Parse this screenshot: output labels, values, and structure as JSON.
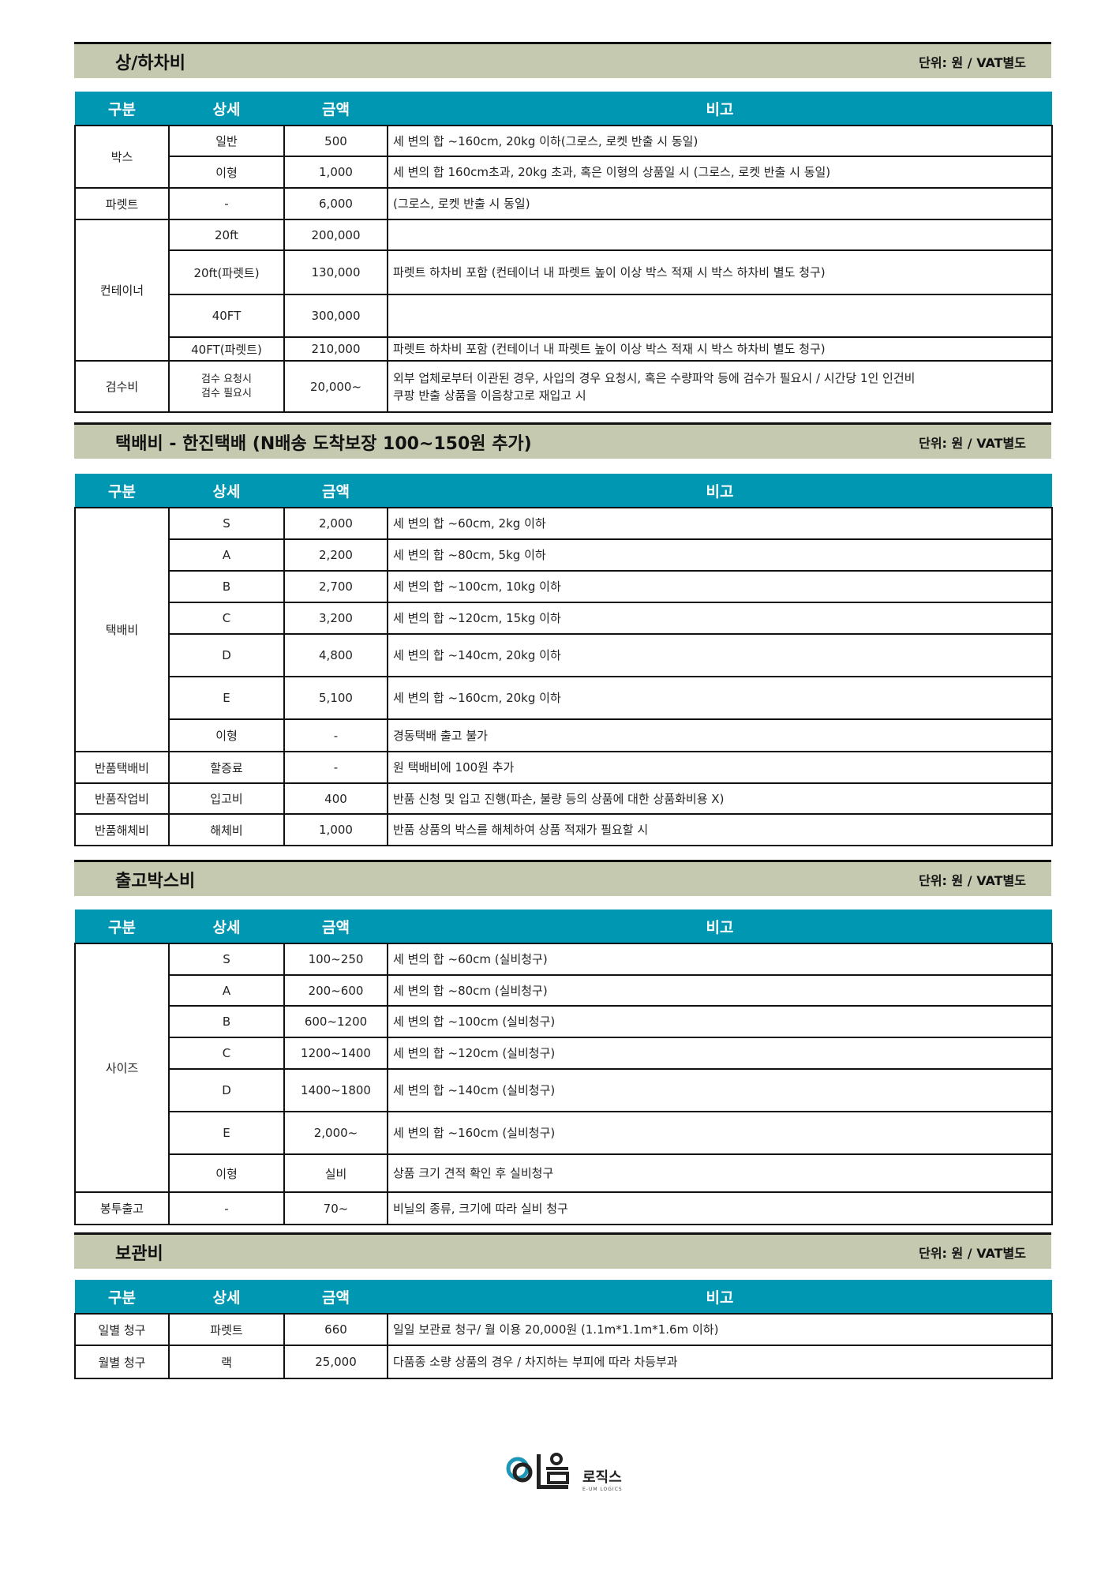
{
  "unit": "단위: 원 / VAT별도",
  "headers": [
    "구분",
    "상세",
    "금액",
    "비고"
  ],
  "s1": {
    "title": "상/하차비",
    "rows": [
      [
        "박스",
        "일반",
        "500",
        "세 변의 합 ~160cm, 20kg 이하(그로스, 로켓 반출 시 동일)"
      ],
      [
        "",
        "이형",
        "1,000",
        "세 변의 합 160cm초과, 20kg 초과, 혹은 이형의 상품일 시 (그로스, 로켓 반출 시 동일)"
      ],
      [
        "파렛트",
        "-",
        "6,000",
        "(그로스, 로켓 반출 시 동일)"
      ],
      [
        "컨테이너",
        "20ft",
        "200,000",
        ""
      ],
      [
        "",
        "20ft(파렛트)",
        "130,000",
        "파렛트 하차비 포함 (컨테이너 내 파렛트 높이 이상 박스 적재 시 박스 하차비 별도 청구)"
      ],
      [
        "",
        "40FT",
        "300,000",
        ""
      ],
      [
        "",
        "40FT(파렛트)",
        "210,000",
        "파렛트 하차비 포함 (컨테이너 내 파렛트 높이 이상 박스 적재 시 박스 하차비 별도 청구)"
      ],
      [
        "검수비",
        "검수 요청시\n검수 필요시",
        "20,000~",
        "외부 업체로부터 이관된 경우, 사입의 경우 요청시, 혹은 수량파악 등에 검수가 필요시 / 시간당 1인 인건비\n쿠팡 반출 상품을 이음창고로 재입고 시"
      ]
    ]
  },
  "s2": {
    "title": "택배비 - 한진택배 (N배송 도착보장 100~150원 추가)",
    "rows": [
      [
        "택배비",
        "S",
        "2,000",
        "세 변의 합 ~60cm, 2kg 이하"
      ],
      [
        "",
        "A",
        "2,200",
        "세 변의 합 ~80cm, 5kg 이하"
      ],
      [
        "",
        "B",
        "2,700",
        "세 변의 합 ~100cm, 10kg 이하"
      ],
      [
        "",
        "C",
        "3,200",
        "세 변의 합 ~120cm, 15kg 이하"
      ],
      [
        "",
        "D",
        "4,800",
        "세 변의 합 ~140cm, 20kg 이하"
      ],
      [
        "",
        "E",
        "5,100",
        "세 변의 합 ~160cm, 20kg 이하"
      ],
      [
        "",
        "이형",
        "-",
        "경동택배 출고 불가"
      ],
      [
        "반품택배비",
        "할증료",
        "-",
        "원 택배비에 100원 추가"
      ],
      [
        "반품작업비",
        "입고비",
        "400",
        "반품 신청 및 입고 진행(파손, 불량 등의 상품에 대한 상품화비용 X)"
      ],
      [
        "반품해체비",
        "해체비",
        "1,000",
        "반품 상품의 박스를 해체하여 상품 적재가 필요할 시"
      ]
    ]
  },
  "s3": {
    "title": "출고박스비",
    "rows": [
      [
        "사이즈",
        "S",
        "100~250",
        "세 변의 합 ~60cm (실비청구)"
      ],
      [
        "",
        "A",
        "200~600",
        "세 변의 합 ~80cm (실비청구)"
      ],
      [
        "",
        "B",
        "600~1200",
        "세 변의 합 ~100cm (실비청구)"
      ],
      [
        "",
        "C",
        "1200~1400",
        "세 변의 합 ~120cm (실비청구)"
      ],
      [
        "",
        "D",
        "1400~1800",
        "세 변의 합 ~140cm (실비청구)"
      ],
      [
        "",
        "E",
        "2,000~",
        "세 변의 합 ~160cm (실비청구)"
      ],
      [
        "",
        "이형",
        "실비",
        "상품 크기 견적 확인 후 실비청구"
      ],
      [
        "봉투출고",
        "-",
        "70~",
        "비닐의 종류, 크기에 따라 실비 청구"
      ]
    ]
  },
  "s4": {
    "title": "보관비",
    "rows": [
      [
        "일별 청구",
        "파렛트",
        "660",
        "일일 보관료 청구/ 월 이용 20,000원 (1.1m*1.1m*1.6m 이하)"
      ],
      [
        "월별 청구",
        "랙",
        "25,000",
        "다품종 소량 상품의 경우 / 차지하는 부피에 따라 차등부과"
      ]
    ]
  },
  "logo": {
    "text": "이음",
    "sub": "로직스",
    "eng": "E-UM LOGICS",
    "colors": {
      "ring": "#1e96b8",
      "dark": "#222"
    }
  }
}
